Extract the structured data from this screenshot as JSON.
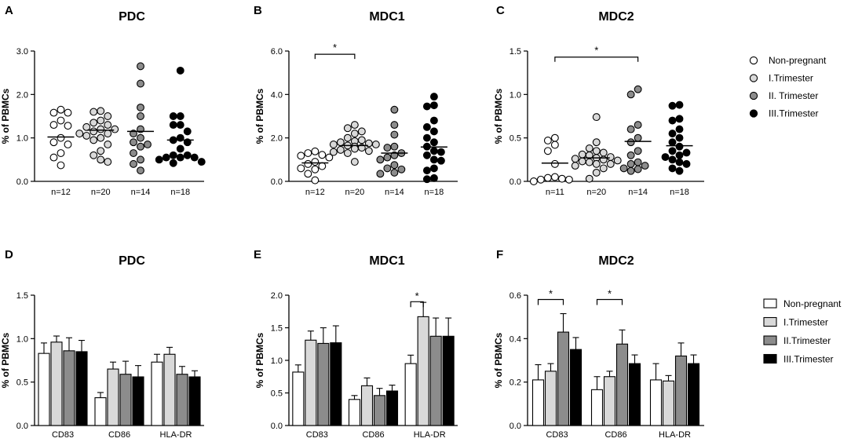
{
  "colors": {
    "nonpregnant": "#ffffff",
    "trim1": "#d9d9d9",
    "trim2": "#8c8c8c",
    "trim3": "#000000",
    "stroke": "#000000"
  },
  "legend_top": [
    "Non-pregnant",
    "I.Trimester",
    "II. Trimester",
    "III.Trimester"
  ],
  "legend_bottom": [
    "Non-pregnant",
    "I.Trimester",
    "II.Trimester",
    "III.Trimester"
  ],
  "chart_data": [
    {
      "panel": "A",
      "type": "scatter",
      "title": "PDC",
      "ylabel": "% of PBMCs",
      "ylim": [
        0,
        3.0
      ],
      "yticks": [
        "0.0",
        "1.0",
        "2.0",
        "3.0"
      ],
      "ytick_values": [
        0,
        1,
        2,
        3
      ],
      "categories": [
        "n=12",
        "n=20",
        "n=14",
        "n=18"
      ],
      "series": [
        {
          "name": "Non-pregnant",
          "median": 1.02,
          "values": [
            1.65,
            1.4,
            1.58,
            1.58,
            1.28,
            1.3,
            1.0,
            0.9,
            0.85,
            0.65,
            0.55,
            0.37
          ]
        },
        {
          "name": "I.Trimester",
          "median": 1.18,
          "values": [
            1.6,
            1.62,
            1.5,
            1.4,
            1.35,
            1.3,
            1.25,
            1.2,
            1.2,
            1.15,
            1.1,
            1.1,
            1.05,
            1.0,
            0.95,
            0.85,
            0.7,
            0.6,
            0.5,
            0.45
          ]
        },
        {
          "name": "II. Trimester",
          "median": 1.15,
          "values": [
            2.65,
            2.25,
            1.7,
            1.5,
            1.2,
            1.1,
            1.0,
            0.9,
            0.85,
            0.8,
            0.65,
            0.5,
            0.4,
            0.25
          ]
        },
        {
          "name": "III.Trimester",
          "median": 0.95,
          "values": [
            2.55,
            1.5,
            1.5,
            1.3,
            1.3,
            1.15,
            1.0,
            0.95,
            0.9,
            0.75,
            0.6,
            0.6,
            0.55,
            0.55,
            0.55,
            0.5,
            0.45,
            0.42
          ]
        }
      ],
      "significance": []
    },
    {
      "panel": "B",
      "type": "scatter",
      "title": "MDC1",
      "ylabel": "% of PBMCs",
      "ylim": [
        0,
        6.0
      ],
      "yticks": [
        "0.0",
        "2.0",
        "4.0",
        "6.0"
      ],
      "ytick_values": [
        0,
        2,
        4,
        6
      ],
      "categories": [
        "n=12",
        "n=20",
        "n=14",
        "n=18"
      ],
      "series": [
        {
          "name": "Non-pregnant",
          "median": 0.85,
          "values": [
            1.38,
            1.3,
            1.22,
            1.18,
            1.1,
            0.9,
            0.8,
            0.7,
            0.6,
            0.55,
            0.35,
            0.05
          ]
        },
        {
          "name": "I.Trimester",
          "median": 1.65,
          "values": [
            2.6,
            2.45,
            2.3,
            2.2,
            2.0,
            1.9,
            1.85,
            1.8,
            1.75,
            1.7,
            1.7,
            1.65,
            1.6,
            1.55,
            1.5,
            1.45,
            1.4,
            1.35,
            1.3,
            0.9
          ]
        },
        {
          "name": "II. Trimester",
          "median": 1.3,
          "values": [
            3.3,
            2.6,
            2.15,
            1.6,
            1.55,
            1.3,
            1.2,
            1.1,
            1.0,
            0.75,
            0.6,
            0.55,
            0.4,
            0.35
          ]
        },
        {
          "name": "III.Trimester",
          "median": 1.58,
          "values": [
            3.9,
            3.5,
            3.45,
            2.8,
            2.5,
            2.3,
            2.0,
            1.8,
            1.6,
            1.4,
            1.35,
            1.2,
            1.0,
            0.95,
            0.6,
            0.5,
            0.15,
            0.1
          ]
        }
      ],
      "significance": [
        {
          "from": 0,
          "to": 1,
          "label": "*",
          "y": 5.85
        }
      ]
    },
    {
      "panel": "C",
      "type": "scatter",
      "title": "MDC2",
      "ylabel": "% of PBMCs",
      "ylim": [
        0,
        1.5
      ],
      "yticks": [
        "0.0",
        "0.5",
        "1.0",
        "1.5"
      ],
      "ytick_values": [
        0,
        0.5,
        1.0,
        1.5
      ],
      "categories": [
        "n=11",
        "n=20",
        "n=14",
        "n=18"
      ],
      "series": [
        {
          "name": "Non-pregnant",
          "median": 0.21,
          "values": [
            0.5,
            0.47,
            0.42,
            0.35,
            0.2,
            0.05,
            0.04,
            0.03,
            0.02,
            0.02,
            0.0
          ]
        },
        {
          "name": "I.Trimester",
          "median": 0.27,
          "values": [
            0.74,
            0.45,
            0.38,
            0.35,
            0.33,
            0.31,
            0.3,
            0.28,
            0.27,
            0.26,
            0.25,
            0.24,
            0.23,
            0.22,
            0.2,
            0.2,
            0.18,
            0.15,
            0.1,
            0.03
          ]
        },
        {
          "name": "II. Trimester",
          "median": 0.46,
          "values": [
            1.06,
            1.0,
            0.65,
            0.6,
            0.5,
            0.45,
            0.35,
            0.3,
            0.22,
            0.2,
            0.18,
            0.15,
            0.14,
            0.12
          ]
        },
        {
          "name": "III.Trimester",
          "median": 0.41,
          "values": [
            0.88,
            0.87,
            0.72,
            0.7,
            0.6,
            0.55,
            0.5,
            0.45,
            0.4,
            0.35,
            0.33,
            0.3,
            0.28,
            0.25,
            0.22,
            0.2,
            0.15,
            0.12
          ]
        }
      ],
      "significance": [
        {
          "from": 0,
          "to": 2,
          "label": "*",
          "y": 1.43
        }
      ]
    },
    {
      "panel": "D",
      "type": "bar",
      "title": "PDC",
      "ylabel": "% of PBMCs",
      "ylim": [
        0,
        1.5
      ],
      "yticks": [
        "0.0",
        "0.5",
        "1.0",
        "1.5"
      ],
      "ytick_values": [
        0,
        0.5,
        1.0,
        1.5
      ],
      "categories": [
        "CD83",
        "CD86",
        "HLA-DR"
      ],
      "series": [
        {
          "name": "Non-pregnant",
          "values": [
            0.83,
            0.32,
            0.73
          ],
          "errors": [
            0.12,
            0.06,
            0.09
          ]
        },
        {
          "name": "I.Trimester",
          "values": [
            0.96,
            0.65,
            0.82
          ],
          "errors": [
            0.07,
            0.08,
            0.08
          ]
        },
        {
          "name": "II.Trimester",
          "values": [
            0.86,
            0.59,
            0.59
          ],
          "errors": [
            0.15,
            0.15,
            0.09
          ]
        },
        {
          "name": "III.Trimester",
          "values": [
            0.85,
            0.56,
            0.56
          ],
          "errors": [
            0.13,
            0.13,
            0.07
          ]
        }
      ],
      "significance": []
    },
    {
      "panel": "E",
      "type": "bar",
      "title": "MDC1",
      "ylabel": "% of PBMCs",
      "ylim": [
        0,
        2.0
      ],
      "yticks": [
        "0.0",
        "0.5",
        "1.0",
        "1.5",
        "2.0"
      ],
      "ytick_values": [
        0,
        0.5,
        1.0,
        1.5,
        2.0
      ],
      "categories": [
        "CD83",
        "CD86",
        "HLA-DR"
      ],
      "series": [
        {
          "name": "Non-pregnant",
          "values": [
            0.82,
            0.4,
            0.95
          ],
          "errors": [
            0.11,
            0.06,
            0.13
          ]
        },
        {
          "name": "I.Trimester",
          "values": [
            1.31,
            0.61,
            1.67
          ],
          "errors": [
            0.14,
            0.12,
            0.22
          ]
        },
        {
          "name": "II.Trimester",
          "values": [
            1.26,
            0.46,
            1.37
          ],
          "errors": [
            0.24,
            0.11,
            0.28
          ]
        },
        {
          "name": "III.Trimester",
          "values": [
            1.27,
            0.53,
            1.37
          ],
          "errors": [
            0.26,
            0.09,
            0.28
          ]
        }
      ],
      "significance": [
        {
          "category": 2,
          "from": 0,
          "to": 1,
          "label": "*",
          "y": 1.9
        }
      ]
    },
    {
      "panel": "F",
      "type": "bar",
      "title": "MDC2",
      "ylabel": "% of PBMCs",
      "ylim": [
        0,
        0.6
      ],
      "yticks": [
        "0.0",
        "0.2",
        "0.4",
        "0.6"
      ],
      "ytick_values": [
        0,
        0.2,
        0.4,
        0.6
      ],
      "categories": [
        "CD83",
        "CD86",
        "HLA-DR"
      ],
      "series": [
        {
          "name": "Non-pregnant",
          "values": [
            0.21,
            0.165,
            0.21
          ],
          "errors": [
            0.07,
            0.06,
            0.075
          ]
        },
        {
          "name": "I.Trimester",
          "values": [
            0.25,
            0.225,
            0.205
          ],
          "errors": [
            0.035,
            0.025,
            0.025
          ]
        },
        {
          "name": "II.Trimester",
          "values": [
            0.43,
            0.375,
            0.32
          ],
          "errors": [
            0.085,
            0.065,
            0.06
          ]
        },
        {
          "name": "III.Trimester",
          "values": [
            0.35,
            0.285,
            0.285
          ],
          "errors": [
            0.055,
            0.04,
            0.04
          ]
        }
      ],
      "significance": [
        {
          "category": 0,
          "from": 0,
          "to": 2,
          "label": "*",
          "y": 0.58
        },
        {
          "category": 1,
          "from": 0,
          "to": 2,
          "label": "*",
          "y": 0.58
        }
      ]
    }
  ]
}
